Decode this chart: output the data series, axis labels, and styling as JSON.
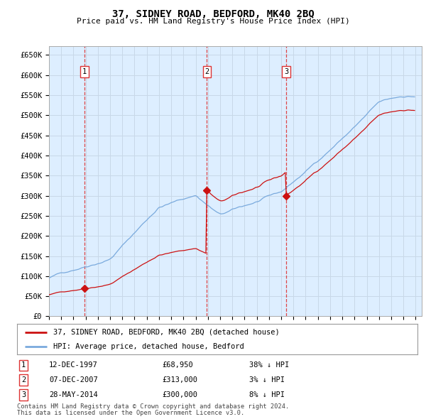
{
  "title": "37, SIDNEY ROAD, BEDFORD, MK40 2BQ",
  "subtitle": "Price paid vs. HM Land Registry's House Price Index (HPI)",
  "ytick_labels": [
    "£0",
    "£50K",
    "£100K",
    "£150K",
    "£200K",
    "£250K",
    "£300K",
    "£350K",
    "£400K",
    "£450K",
    "£500K",
    "£550K",
    "£600K",
    "£650K"
  ],
  "ytick_values": [
    0,
    50000,
    100000,
    150000,
    200000,
    250000,
    300000,
    350000,
    400000,
    450000,
    500000,
    550000,
    600000,
    650000
  ],
  "xmin": 1995.0,
  "xmax": 2025.5,
  "ymin": 0,
  "ymax": 672000,
  "hpi_color": "#7aaadd",
  "price_color": "#cc1111",
  "vline_color": "#dd3333",
  "grid_color": "#c8d8e8",
  "bg_color": "#ffffff",
  "plot_bg_color": "#ddeeff",
  "transactions": [
    {
      "num": 1,
      "date": "12-DEC-1997",
      "price": 68950,
      "pct": "38%",
      "direction": "↓",
      "x_year": 1997.917
    },
    {
      "num": 2,
      "date": "07-DEC-2007",
      "price": 313000,
      "pct": "3%",
      "direction": "↓",
      "x_year": 2007.917
    },
    {
      "num": 3,
      "date": "28-MAY-2014",
      "price": 300000,
      "pct": "8%",
      "direction": "↓",
      "x_year": 2014.417
    }
  ],
  "legend_label_price": "37, SIDNEY ROAD, BEDFORD, MK40 2BQ (detached house)",
  "legend_label_hpi": "HPI: Average price, detached house, Bedford",
  "footer1": "Contains HM Land Registry data © Crown copyright and database right 2024.",
  "footer2": "This data is licensed under the Open Government Licence v3.0."
}
